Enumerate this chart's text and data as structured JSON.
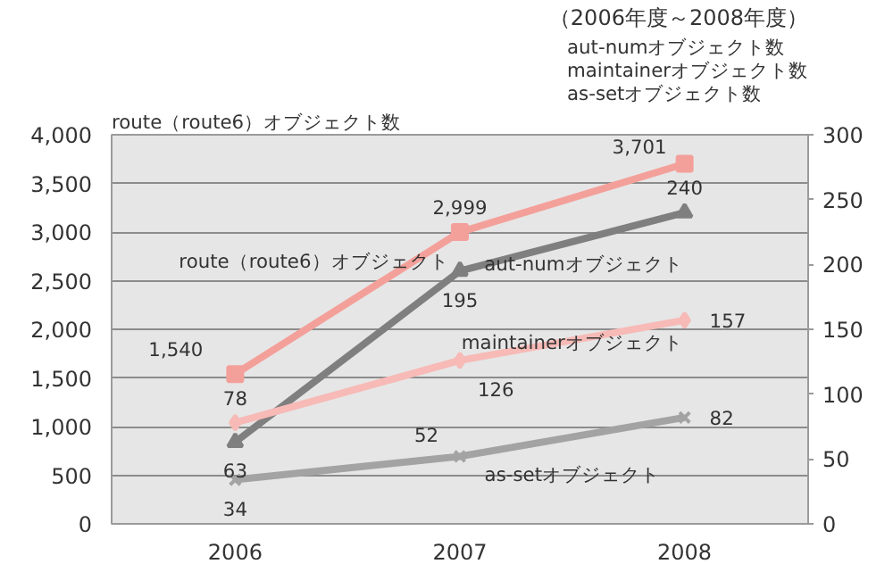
{
  "chart_data": {
    "type": "line",
    "title": "（2006年度～2008年度）",
    "ylabel": "route（route6）オブジェクト数",
    "y2label": "aut-numオブジェクト数\nmaintainerオブジェクト数\nas-setオブジェクト数",
    "categories": [
      "2006",
      "2007",
      "2008"
    ],
    "series": [
      {
        "name": "route（route6）オブジェクト",
        "color": "#f4a09a",
        "values": [
          1540,
          2999,
          3701
        ],
        "value_labels": [
          "1,540",
          "2,999",
          "3,701"
        ],
        "marker": "square"
      },
      {
        "name": "aut-numオブジェクト",
        "color": "#7f7f7f",
        "values": [
          63,
          195,
          240
        ],
        "axis": "y2",
        "marker": "triangle"
      },
      {
        "name": "maintainerオブジェクト",
        "color": "#f7bab6",
        "values": [
          78,
          126,
          157
        ],
        "axis": "y2",
        "marker": "diamond"
      },
      {
        "name": "as-setオブジェクト",
        "color": "#a3a3a3",
        "values": [
          34,
          52,
          82
        ],
        "axis": "y2",
        "marker": "cross"
      }
    ],
    "ylim": [
      0,
      4000
    ],
    "yticks": [
      0,
      {
        "value": 500,
        "label": "500"
      },
      {
        "value": 1000,
        "label": "1,000"
      },
      {
        "value": 1500,
        "label": "1,500"
      },
      {
        "value": 2000,
        "label": "2,000"
      },
      {
        "value": 2500,
        "label": "2,500"
      },
      {
        "value": 3000,
        "label": "3,000"
      },
      {
        "value": 3500,
        "label": "3,500"
      },
      {
        "value": 4000,
        "label": "4,000"
      }
    ],
    "y2lim": [
      0,
      300
    ],
    "y2ticks": [
      0,
      50,
      100,
      150,
      200,
      250,
      300
    ],
    "grid": "y",
    "data_labels": true,
    "line_style": "solid"
  }
}
